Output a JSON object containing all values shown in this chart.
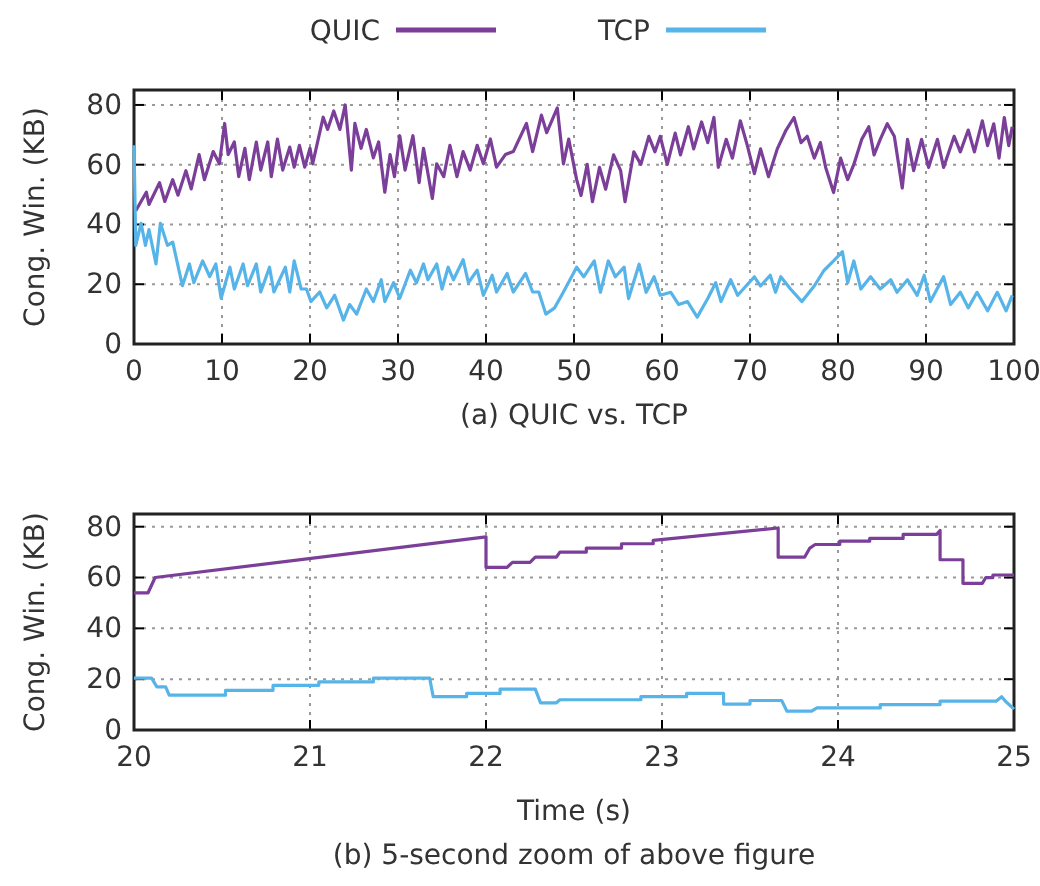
{
  "chart_data": [
    {
      "type": "line",
      "title": "(a) QUIC vs. TCP",
      "ylabel": "Cong. Win. (KB)",
      "xlim": [
        0,
        100
      ],
      "xticks": [
        0,
        10,
        20,
        30,
        40,
        50,
        60,
        70,
        80,
        90,
        100
      ],
      "ylim": [
        0,
        85
      ],
      "yticks": [
        0,
        20,
        40,
        60,
        80
      ],
      "grid": true,
      "legend": "top",
      "line_style": "solid",
      "marker": "none",
      "series": [
        {
          "name": "QUIC",
          "color": "#7b3f99",
          "x": [
            0.2,
            1.4,
            1.7,
            2.9,
            3.5,
            4.4,
            5,
            5.9,
            6.5,
            7.4,
            8,
            9,
            9.7,
            10.3,
            10.7,
            11.4,
            11.9,
            12.6,
            13.1,
            13.9,
            14.4,
            15.2,
            15.6,
            16.3,
            16.9,
            17.7,
            18.2,
            18.8,
            19.4,
            20,
            20.3,
            21.5,
            22,
            22.7,
            23.4,
            24,
            24.7,
            25.1,
            25.8,
            26.4,
            27.2,
            27.8,
            28.5,
            29.1,
            29.6,
            30.2,
            30.8,
            31.7,
            32.4,
            32.9,
            33.9,
            34.4,
            35.2,
            35.9,
            36.7,
            37.4,
            38.2,
            39,
            39.7,
            40.5,
            41.2,
            42.2,
            43.1,
            44.6,
            45.3,
            46.3,
            46.9,
            48.1,
            48.8,
            49.4,
            50.3,
            50.8,
            51.5,
            52.1,
            52.9,
            53.6,
            54.5,
            55.3,
            55.8,
            56.8,
            57.6,
            58.5,
            59.2,
            59.8,
            60.6,
            61.5,
            62.1,
            63,
            63.6,
            64.5,
            65.2,
            65.9,
            66.4,
            67.3,
            68,
            68.9,
            69.7,
            70.5,
            71.2,
            72.1,
            73.1,
            74.1,
            75,
            75.8,
            76.5,
            77.3,
            78,
            78.6,
            79.5,
            80.3,
            81.1,
            81.8,
            82.7,
            83.5,
            84.1,
            84.8,
            85.6,
            86.4,
            87.3,
            87.9,
            88.6,
            89.5,
            90.3,
            91.3,
            92,
            93.2,
            93.9,
            94.8,
            95.5,
            96.4,
            97,
            97.7,
            98.3,
            98.9,
            99.4,
            99.8
          ],
          "values": [
            44.6,
            50.8,
            46.7,
            54,
            47.7,
            55,
            49.8,
            58,
            51.9,
            63.4,
            55,
            64.4,
            60.3,
            73.8,
            63.4,
            67.6,
            56,
            65.5,
            55,
            67.6,
            58.2,
            67.6,
            56,
            68.6,
            58.2,
            65.9,
            59.2,
            66.5,
            59.2,
            65.5,
            60.3,
            75.9,
            71.8,
            78,
            71.8,
            80,
            58.2,
            73.8,
            65.5,
            71.8,
            62.3,
            67.6,
            50.8,
            63.4,
            56,
            69.7,
            58.2,
            69.7,
            54,
            65.5,
            48.7,
            60.3,
            56,
            66.5,
            56,
            64.4,
            58.2,
            66.5,
            60.3,
            68.6,
            59.2,
            63.4,
            64.4,
            73.8,
            64.4,
            76.6,
            70.7,
            79,
            60.3,
            68.6,
            55,
            49.7,
            60.1,
            47.6,
            59.1,
            51.8,
            63.3,
            58,
            47.6,
            64.3,
            60.1,
            69.5,
            64.3,
            69.5,
            60.1,
            70.6,
            63.3,
            72.7,
            65.3,
            74.3,
            67.4,
            75.8,
            59.1,
            68.5,
            62.2,
            74.7,
            66.4,
            57,
            65.3,
            56,
            65.3,
            71.6,
            75.8,
            67.4,
            69.5,
            62.2,
            67.4,
            59.1,
            50.7,
            62.2,
            55,
            60.1,
            68.5,
            72.7,
            63.3,
            68.5,
            73.7,
            69.5,
            52.2,
            68.5,
            58,
            68.5,
            59.1,
            68.5,
            59.1,
            69.5,
            64.3,
            71.6,
            64.3,
            74.7,
            66.4,
            73.7,
            62.2,
            75.8,
            66.4,
            72.7
          ]
        },
        {
          "name": "TCP",
          "color": "#56b4e9",
          "x": [
            0,
            0.2,
            0.8,
            1.3,
            1.7,
            2.5,
            3,
            3.8,
            4.4,
            5.5,
            6.3,
            6.8,
            7.8,
            8.6,
            9.3,
            9.9,
            10.9,
            11.4,
            12.4,
            12.9,
            13.9,
            14.4,
            15.4,
            15.9,
            17.2,
            17.7,
            18.2,
            19,
            19.6,
            20.1,
            21.1,
            21.9,
            22.8,
            23.8,
            24.5,
            25.3,
            26.4,
            27.2,
            28.1,
            28.5,
            29.5,
            30.2,
            31.4,
            32.1,
            32.9,
            33.4,
            34.4,
            35,
            35.7,
            36.3,
            37.4,
            38,
            39,
            39.7,
            40.7,
            41.2,
            42.4,
            43.1,
            44.5,
            45.3,
            46,
            46.8,
            47.8,
            48.8,
            50.3,
            51.1,
            52.3,
            53,
            53.9,
            54.7,
            55.7,
            56.2,
            57.4,
            58.2,
            59.1,
            59.8,
            61,
            61.9,
            62.9,
            64,
            65.2,
            66.1,
            66.7,
            67.8,
            68.6,
            70.5,
            71.2,
            72.3,
            72.9,
            73.5,
            74.6,
            75.9,
            77.3,
            78.4,
            79.5,
            80.5,
            81.1,
            81.8,
            82.6,
            83.7,
            84.8,
            86,
            86.7,
            87.9,
            89,
            89.8,
            90.5,
            92,
            92.8,
            93.9,
            94.8,
            95.8,
            97,
            98.1,
            99.1,
            99.8
          ],
          "values": [
            66.5,
            33,
            40.4,
            33,
            38.3,
            26.8,
            40.4,
            33,
            34.1,
            19.5,
            26.8,
            20.5,
            27.8,
            22.6,
            26.8,
            15.3,
            25.7,
            18.4,
            26.8,
            19.5,
            26.8,
            17.4,
            25.7,
            17.4,
            25.7,
            17.4,
            27.8,
            18.4,
            18.4,
            14.2,
            17.4,
            12.1,
            16.3,
            8,
            13.2,
            10,
            18.4,
            14.2,
            21.5,
            14.2,
            20.5,
            15.3,
            24.7,
            20.5,
            26.8,
            21.5,
            26.8,
            18.4,
            25.7,
            21.5,
            28.2,
            20.5,
            24.7,
            16.3,
            23,
            17.4,
            23.6,
            17.4,
            23.6,
            17.4,
            17.4,
            10,
            12.1,
            17.4,
            25.7,
            22.5,
            27.8,
            17.3,
            27.8,
            22.5,
            25.7,
            15.2,
            26.7,
            17.3,
            22.5,
            16.3,
            17.3,
            13.2,
            14.2,
            9,
            15.2,
            20.5,
            14.2,
            21.5,
            16.3,
            22.5,
            19.4,
            23,
            17.3,
            22.5,
            18.4,
            14.2,
            19.4,
            24.6,
            27.8,
            30.9,
            20.5,
            27.8,
            18.4,
            22.5,
            18.4,
            21.5,
            17.3,
            21.5,
            16.3,
            23,
            14.2,
            22.5,
            13.2,
            17.3,
            12.1,
            17.3,
            11.1,
            17.3,
            11.1,
            16.3
          ]
        }
      ]
    },
    {
      "type": "line",
      "title": "(b) 5-second zoom of above figure",
      "xlabel": "Time (s)",
      "ylabel": "Cong. Win. (KB)",
      "xlim": [
        20,
        25
      ],
      "xticks": [
        20,
        21,
        22,
        23,
        24,
        25
      ],
      "ylim": [
        0,
        85
      ],
      "yticks": [
        0,
        20,
        40,
        60,
        80
      ],
      "grid": true,
      "line_style": "solid",
      "marker": "none",
      "series": [
        {
          "color": "#7b3f99",
          "x": [
            20,
            20.08,
            20.12,
            22,
            22,
            22.12,
            22.15,
            22.25,
            22.28,
            22.4,
            22.42,
            22.57,
            22.57,
            22.77,
            22.77,
            22.95,
            22.95,
            23.66,
            23.66,
            23.81,
            23.84,
            23.87,
            24.01,
            24.01,
            24.18,
            24.18,
            24.37,
            24.37,
            24.56,
            24.58,
            24.58,
            24.71,
            24.71,
            24.82,
            24.84,
            24.88,
            24.88,
            25
          ],
          "values": [
            54,
            54,
            60,
            76,
            64,
            64,
            66,
            66,
            68,
            68,
            70,
            70,
            71.6,
            71.6,
            73.3,
            73.3,
            74.6,
            79.5,
            68,
            68,
            71.6,
            73,
            73,
            74.3,
            74.3,
            75.4,
            75.4,
            77,
            77,
            78.5,
            67,
            67,
            57.7,
            57.7,
            60,
            60,
            61,
            61
          ]
        },
        {
          "color": "#56b4e9",
          "x": [
            20,
            20.1,
            20.13,
            20.18,
            20.2,
            20.52,
            20.52,
            20.79,
            20.79,
            21.05,
            21.05,
            21.36,
            21.36,
            21.68,
            21.7,
            21.89,
            21.89,
            22.08,
            22.08,
            22.28,
            22.31,
            22.4,
            22.42,
            22.88,
            22.88,
            23.14,
            23.14,
            23.35,
            23.35,
            23.5,
            23.5,
            23.68,
            23.71,
            23.85,
            23.88,
            24.24,
            24.24,
            24.58,
            24.58,
            24.9,
            24.93,
            24.95,
            25
          ],
          "values": [
            20.4,
            20.4,
            17,
            17,
            13.7,
            13.7,
            15.6,
            15.6,
            17.6,
            17.6,
            18.9,
            18.9,
            20.4,
            20.4,
            13.1,
            13.1,
            14.4,
            14.4,
            16.1,
            16.1,
            10.7,
            10.7,
            11.9,
            11.9,
            13.1,
            13.1,
            14.4,
            14.4,
            10.2,
            10.2,
            11.6,
            11.6,
            7.4,
            7.4,
            8.7,
            8.7,
            10,
            10,
            11.4,
            11.4,
            13.1,
            11.4,
            8.2
          ]
        }
      ]
    }
  ]
}
